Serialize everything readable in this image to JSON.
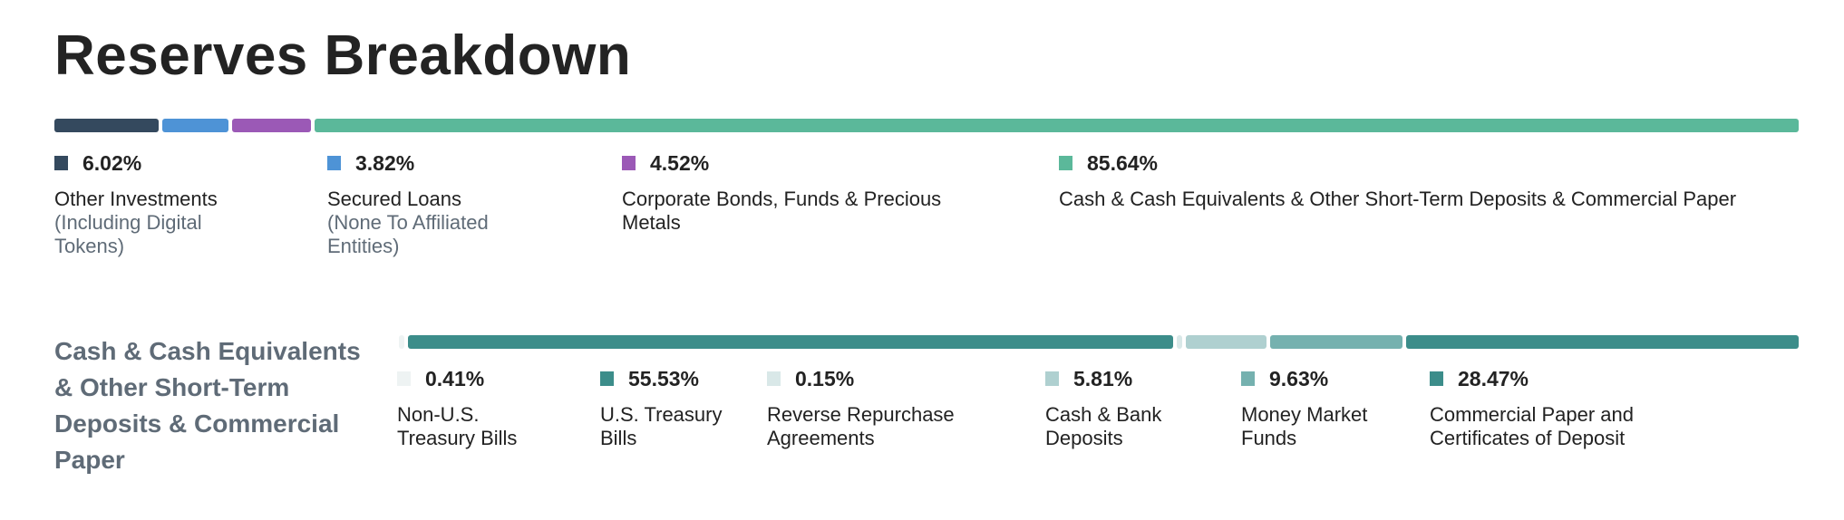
{
  "title": "Reserves Breakdown",
  "chart_data": [
    {
      "type": "bar",
      "subtype": "stacked-100-percent",
      "title": "Reserves Breakdown",
      "unit": "%",
      "series": [
        {
          "name": "Other Investments",
          "subname": "(Including Digital Tokens)",
          "value": 6.02,
          "value_label": "6.02%",
          "color": "#34495e"
        },
        {
          "name": "Secured Loans",
          "subname": "(None To Affiliated Entities)",
          "value": 3.82,
          "value_label": "3.82%",
          "color": "#4e93d6"
        },
        {
          "name": "Corporate Bonds, Funds & Precious Metals",
          "subname": "",
          "value": 4.52,
          "value_label": "4.52%",
          "color": "#9b59b6"
        },
        {
          "name": "Cash & Cash Equivalents & Other Short-Term Deposits & Commercial Paper",
          "subname": "",
          "value": 85.64,
          "value_label": "85.64%",
          "color": "#5bb89a"
        }
      ]
    },
    {
      "type": "bar",
      "subtype": "stacked-100-percent",
      "title": "Cash & Cash Equivalents & Other Short-Term Deposits & Commercial Paper",
      "unit": "%",
      "series": [
        {
          "name": "Non-U.S. Treasury Bills",
          "value": 0.41,
          "value_label": "0.41%",
          "color": "#eef3f3"
        },
        {
          "name": "U.S. Treasury Bills",
          "value": 55.53,
          "value_label": "55.53%",
          "color": "#3c8d8a"
        },
        {
          "name": "Reverse Repurchase Agreements",
          "value": 0.15,
          "value_label": "0.15%",
          "color": "#d9e8e8"
        },
        {
          "name": "Cash & Bank Deposits",
          "value": 5.81,
          "value_label": "5.81%",
          "color": "#afd0d0"
        },
        {
          "name": "Money Market Funds",
          "value": 9.63,
          "value_label": "9.63%",
          "color": "#75b1af"
        },
        {
          "name": "Commercial Paper and Certificates of Deposit",
          "value": 28.47,
          "value_label": "28.47%",
          "color": "#3c8d8a"
        }
      ]
    }
  ]
}
